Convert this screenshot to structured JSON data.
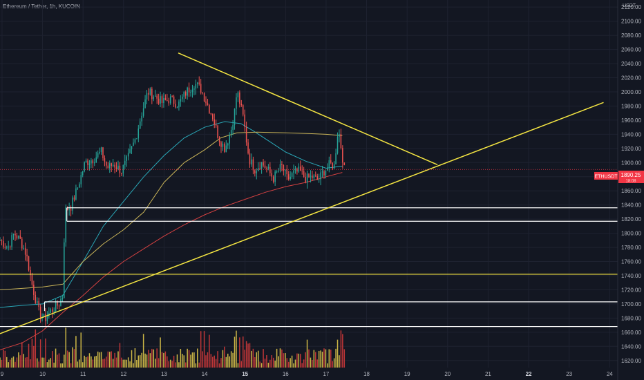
{
  "header": {
    "title": "Ethereum / Tether, 1h, KUCOIN",
    "unit": "USDT"
  },
  "price_tag": {
    "symbol": "ETHUSDT",
    "value": "1890.25",
    "sub": "18:08",
    "color": "#f23645"
  },
  "colors": {
    "background": "#131722",
    "up": "#26a69a",
    "down": "#ef5350",
    "ema_fast": "#2aa8b8",
    "ema_mid": "#c9b458",
    "ema_slow": "#d44141",
    "drawing": "#f5e642",
    "level": "#ffffff"
  },
  "chart_data": {
    "type": "candlestick",
    "ylim": [
      1610,
      2130
    ],
    "xlim": [
      8.95,
      24.2
    ],
    "yticks": [
      1620,
      1640,
      1660,
      1680,
      1700,
      1720,
      1740,
      1760,
      1780,
      1800,
      1820,
      1840,
      1860,
      1880,
      1900,
      1920,
      1940,
      1960,
      1980,
      2000,
      2020,
      2040,
      2060,
      2080,
      2100,
      2120
    ],
    "xticks": [
      {
        "label": "9",
        "x": 9.0,
        "bold": false
      },
      {
        "label": "10",
        "x": 10.0,
        "bold": false
      },
      {
        "label": "11",
        "x": 11.0,
        "bold": false
      },
      {
        "label": "12",
        "x": 12.0,
        "bold": false
      },
      {
        "label": "13",
        "x": 13.0,
        "bold": false
      },
      {
        "label": "14",
        "x": 14.0,
        "bold": false
      },
      {
        "label": "15",
        "x": 15.0,
        "bold": true
      },
      {
        "label": "16",
        "x": 16.0,
        "bold": false
      },
      {
        "label": "17",
        "x": 17.0,
        "bold": false
      },
      {
        "label": "18",
        "x": 18.0,
        "bold": false
      },
      {
        "label": "19",
        "x": 19.0,
        "bold": false
      },
      {
        "label": "20",
        "x": 20.0,
        "bold": false
      },
      {
        "label": "21",
        "x": 21.0,
        "bold": false
      },
      {
        "label": "22",
        "x": 22.0,
        "bold": true
      },
      {
        "label": "23",
        "x": 23.0,
        "bold": false
      },
      {
        "label": "24",
        "x": 24.0,
        "bold": false
      }
    ],
    "anchors": [
      [
        8.95,
        1790
      ],
      [
        9.15,
        1780
      ],
      [
        9.3,
        1800
      ],
      [
        9.45,
        1790
      ],
      [
        9.6,
        1770
      ],
      [
        9.75,
        1725
      ],
      [
        9.9,
        1690
      ],
      [
        10.05,
        1678
      ],
      [
        10.2,
        1690
      ],
      [
        10.4,
        1700
      ],
      [
        10.5,
        1712
      ],
      [
        10.55,
        1832
      ],
      [
        10.7,
        1838
      ],
      [
        10.85,
        1862
      ],
      [
        11.05,
        1900
      ],
      [
        11.25,
        1905
      ],
      [
        11.45,
        1915
      ],
      [
        11.6,
        1892
      ],
      [
        11.75,
        1898
      ],
      [
        11.95,
        1888
      ],
      [
        12.1,
        1905
      ],
      [
        12.3,
        1935
      ],
      [
        12.45,
        1970
      ],
      [
        12.6,
        2000
      ],
      [
        12.75,
        1995
      ],
      [
        12.95,
        1985
      ],
      [
        13.15,
        1990
      ],
      [
        13.35,
        1982
      ],
      [
        13.55,
        2000
      ],
      [
        13.75,
        2012
      ],
      [
        13.9,
        2005
      ],
      [
        14.05,
        1985
      ],
      [
        14.2,
        1965
      ],
      [
        14.35,
        1935
      ],
      [
        14.5,
        1920
      ],
      [
        14.65,
        1945
      ],
      [
        14.75,
        1975
      ],
      [
        14.8,
        2002
      ],
      [
        14.95,
        1965
      ],
      [
        15.1,
        1905
      ],
      [
        15.25,
        1890
      ],
      [
        15.4,
        1900
      ],
      [
        15.55,
        1890
      ],
      [
        15.7,
        1878
      ],
      [
        15.9,
        1895
      ],
      [
        16.05,
        1876
      ],
      [
        16.2,
        1885
      ],
      [
        16.35,
        1888
      ],
      [
        16.5,
        1877
      ],
      [
        16.65,
        1880
      ],
      [
        16.8,
        1875
      ],
      [
        16.95,
        1888
      ],
      [
        17.1,
        1898
      ],
      [
        17.2,
        1895
      ],
      [
        17.3,
        1950
      ],
      [
        17.45,
        1890
      ]
    ],
    "ema_fast": [
      [
        8.95,
        1695
      ],
      [
        9.5,
        1698
      ],
      [
        10.0,
        1700
      ],
      [
        10.5,
        1712
      ],
      [
        11.0,
        1760
      ],
      [
        11.5,
        1810
      ],
      [
        12.0,
        1845
      ],
      [
        12.5,
        1880
      ],
      [
        13.0,
        1910
      ],
      [
        13.5,
        1935
      ],
      [
        14.0,
        1950
      ],
      [
        14.5,
        1958
      ],
      [
        14.9,
        1955
      ],
      [
        15.2,
        1945
      ],
      [
        15.6,
        1930
      ],
      [
        16.0,
        1915
      ],
      [
        16.5,
        1902
      ],
      [
        17.0,
        1892
      ],
      [
        17.4,
        1895
      ]
    ],
    "ema_mid": [
      [
        8.95,
        1720
      ],
      [
        9.5,
        1722
      ],
      [
        10.0,
        1724
      ],
      [
        10.5,
        1728
      ],
      [
        11.0,
        1760
      ],
      [
        11.5,
        1785
      ],
      [
        12.0,
        1805
      ],
      [
        12.5,
        1830
      ],
      [
        13.0,
        1872
      ],
      [
        13.5,
        1900
      ],
      [
        14.0,
        1918
      ],
      [
        14.4,
        1935
      ],
      [
        14.8,
        1942
      ],
      [
        15.3,
        1943
      ],
      [
        16.0,
        1942
      ],
      [
        16.6,
        1941
      ],
      [
        17.0,
        1940
      ],
      [
        17.4,
        1938
      ]
    ],
    "ema_slow": [
      [
        8.95,
        1635
      ],
      [
        9.5,
        1645
      ],
      [
        10.0,
        1662
      ],
      [
        10.5,
        1688
      ],
      [
        11.0,
        1712
      ],
      [
        11.5,
        1738
      ],
      [
        12.0,
        1760
      ],
      [
        12.5,
        1778
      ],
      [
        13.0,
        1796
      ],
      [
        13.5,
        1812
      ],
      [
        14.0,
        1826
      ],
      [
        14.5,
        1838
      ],
      [
        15.0,
        1848
      ],
      [
        15.5,
        1858
      ],
      [
        16.0,
        1866
      ],
      [
        16.5,
        1872
      ],
      [
        17.0,
        1880
      ],
      [
        17.4,
        1886
      ]
    ],
    "trendlines": [
      {
        "name": "descending-trendline",
        "from": [
          13.35,
          2055
        ],
        "to": [
          19.75,
          1897
        ]
      },
      {
        "name": "ascending-trendline",
        "from": [
          8.95,
          1658
        ],
        "to": [
          23.85,
          1985
        ]
      }
    ],
    "hlines": [
      {
        "name": "yellow-level-1742",
        "y": 1742,
        "x0": 8.95,
        "x1": 24.2,
        "color": "#f5e642"
      },
      {
        "name": "white-level-1836",
        "y": 1836,
        "x0": 10.6,
        "x1": 24.2,
        "color": "#ffffff"
      },
      {
        "name": "white-level-1817",
        "y": 1817,
        "x0": 10.6,
        "x1": 24.2,
        "color": "#ffffff"
      },
      {
        "name": "white-level-1703",
        "y": 1703,
        "x0": 10.05,
        "x1": 24.2,
        "color": "#ffffff"
      },
      {
        "name": "white-level-1668",
        "y": 1668,
        "x0": 8.95,
        "x1": 24.2,
        "color": "#ffffff"
      }
    ],
    "last_price": 1890.25
  }
}
